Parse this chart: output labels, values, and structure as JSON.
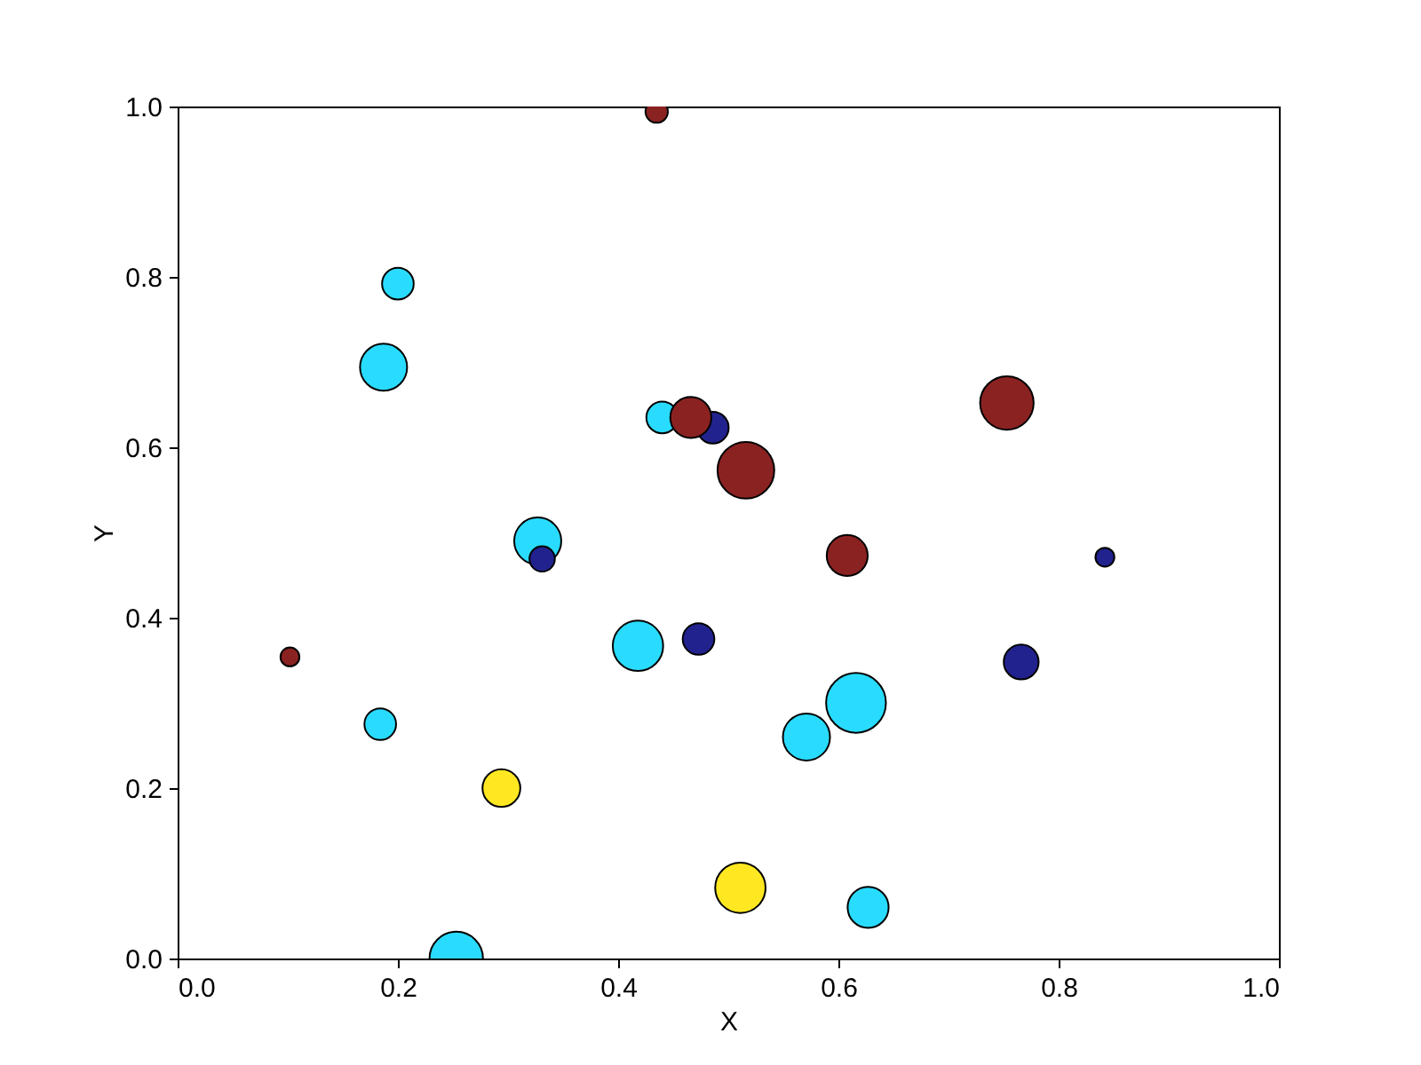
{
  "chart_data": {
    "type": "bubble",
    "xlabel": "X",
    "ylabel": "Y",
    "xlim": [
      0,
      1
    ],
    "ylim": [
      0,
      1
    ],
    "xticks": [
      {
        "value": 0,
        "label": "0.0"
      },
      {
        "value": 0.2,
        "label": "0.2"
      },
      {
        "value": 0.4,
        "label": "0.4"
      },
      {
        "value": 0.6,
        "label": "0.6"
      },
      {
        "value": 0.8,
        "label": "0.8"
      },
      {
        "value": 1,
        "label": "1.0"
      }
    ],
    "yticks": [
      {
        "value": 0,
        "label": "0.0"
      },
      {
        "value": 0.2,
        "label": "0.2"
      },
      {
        "value": 0.4,
        "label": "0.4"
      },
      {
        "value": 0.6,
        "label": "0.6"
      },
      {
        "value": 0.8,
        "label": "0.8"
      },
      {
        "value": 1,
        "label": "1.0"
      }
    ],
    "marker": "circle",
    "series": [
      {
        "color": "#29dcff",
        "x": [
          0.2,
          0.187,
          0.44,
          0.327,
          0.418,
          0.616,
          0.571,
          0.184,
          0.627,
          0.253
        ],
        "values": [
          0.792,
          0.694,
          0.635,
          0.49,
          0.367,
          0.3,
          0.26,
          0.275,
          0.06,
          0.0
        ],
        "sizes": [
          0.28,
          0.62,
          0.28,
          0.62,
          0.71,
          1,
          0.62,
          0.28,
          0.47,
          0.8
        ]
      },
      {
        "color": "#22228f",
        "x": [
          0.486,
          0.331,
          0.842,
          0.473,
          0.766
        ],
        "values": [
          0.623,
          0.469,
          0.471,
          0.375,
          0.348
        ],
        "sizes": [
          0.28,
          0.18,
          0.1,
          0.28,
          0.34
        ]
      },
      {
        "color": "#8b2222",
        "x": [
          0.435,
          0.466,
          0.516,
          0.753,
          0.608,
          0.102
        ],
        "values": [
          0.994,
          0.635,
          0.573,
          0.652,
          0.473,
          0.354
        ],
        "sizes": [
          0.14,
          0.47,
          0.9,
          0.8,
          0.47,
          0.1
        ]
      },
      {
        "color": "#ffe822",
        "x": [
          0.294,
          0.511
        ],
        "values": [
          0.2,
          0.083
        ],
        "sizes": [
          0.4,
          0.71
        ]
      }
    ]
  }
}
